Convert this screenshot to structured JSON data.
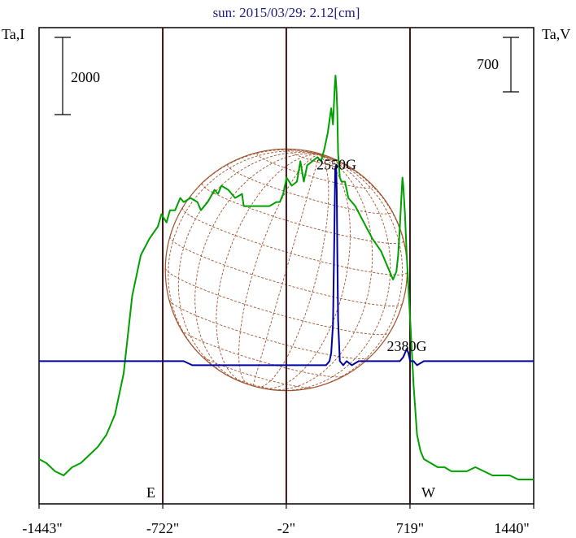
{
  "chart_data": {
    "type": "line",
    "title": "sun: 2015/03/29: 2.12[cm]",
    "left_axis_label": "Ta,I",
    "right_axis_label": "Ta,V",
    "left_scale_bar_label": "2000",
    "left_scale_bar_value": 2000,
    "right_scale_bar_label": "700",
    "right_scale_bar_value": 700,
    "x_tick_labels": [
      "-1443\"",
      "-722\"",
      "-2\"",
      "719\"",
      "1440\""
    ],
    "x_ticks": [
      -1443,
      -722,
      -2,
      719,
      1440
    ],
    "xlim": [
      -1443,
      1440
    ],
    "ylim_relative": [
      0,
      1
    ],
    "vertical_markers": [
      {
        "x": -722,
        "label": "E"
      },
      {
        "x": -2,
        "label": ""
      },
      {
        "x": 719,
        "label": "W"
      }
    ],
    "annotations": [
      {
        "text": "2550G",
        "x": 290,
        "y": 0.77
      },
      {
        "text": "2380G",
        "x": 700,
        "y": 0.325
      }
    ],
    "solar_disk": {
      "center_x": -2,
      "radius_arcsec": 705,
      "color": "#a0522d"
    },
    "series": [
      {
        "color": "#00a000",
        "x": [
          -1443,
          -1400,
          -1350,
          -1300,
          -1250,
          -1200,
          -1150,
          -1100,
          -1050,
          -1000,
          -950,
          -900,
          -850,
          -800,
          -750,
          -730,
          -700,
          -680,
          -650,
          -620,
          -600,
          -560,
          -520,
          -500,
          -460,
          -420,
          -400,
          -380,
          -340,
          -300,
          -260,
          -250,
          -200,
          -150,
          -100,
          -60,
          -40,
          -20,
          0,
          30,
          60,
          80,
          100,
          120,
          150,
          180,
          200,
          220,
          240,
          260,
          270,
          280,
          285,
          290,
          295,
          300,
          310,
          320,
          340,
          360,
          400,
          450,
          500,
          550,
          600,
          620,
          640,
          650,
          660,
          670,
          675,
          680,
          690,
          700,
          720,
          740,
          760,
          780,
          800,
          840,
          880,
          920,
          960,
          1000,
          1050,
          1100,
          1150,
          1200,
          1250,
          1300,
          1350,
          1400,
          1440
        ],
        "y": [
          0.06,
          0.05,
          0.03,
          0.02,
          0.04,
          0.05,
          0.07,
          0.09,
          0.12,
          0.17,
          0.27,
          0.46,
          0.56,
          0.6,
          0.63,
          0.66,
          0.64,
          0.67,
          0.67,
          0.7,
          0.69,
          0.7,
          0.69,
          0.67,
          0.69,
          0.72,
          0.71,
          0.73,
          0.72,
          0.7,
          0.71,
          0.68,
          0.68,
          0.68,
          0.68,
          0.69,
          0.69,
          0.71,
          0.75,
          0.73,
          0.74,
          0.79,
          0.74,
          0.78,
          0.79,
          0.8,
          0.79,
          0.82,
          0.86,
          0.92,
          0.88,
          0.97,
          1.0,
          0.97,
          0.92,
          0.81,
          0.75,
          0.74,
          0.74,
          0.7,
          0.68,
          0.64,
          0.6,
          0.57,
          0.52,
          0.5,
          0.52,
          0.56,
          0.63,
          0.71,
          0.75,
          0.73,
          0.66,
          0.56,
          0.4,
          0.24,
          0.12,
          0.08,
          0.06,
          0.05,
          0.04,
          0.04,
          0.03,
          0.03,
          0.03,
          0.04,
          0.03,
          0.02,
          0.02,
          0.02,
          0.01,
          0.01,
          0.01
        ]
      },
      {
        "color": "#0000a0",
        "x": [
          -1443,
          -1400,
          -1350,
          -1300,
          -1250,
          -1200,
          -1150,
          -1100,
          -1050,
          -1000,
          -950,
          -900,
          -850,
          -800,
          -750,
          -700,
          -650,
          -600,
          -550,
          -500,
          -450,
          -400,
          -350,
          -300,
          -250,
          -200,
          -150,
          -100,
          -50,
          0,
          50,
          100,
          150,
          200,
          230,
          250,
          260,
          270,
          278,
          283,
          288,
          292,
          296,
          300,
          310,
          330,
          350,
          380,
          420,
          460,
          500,
          550,
          600,
          640,
          660,
          680,
          690,
          700,
          710,
          720,
          740,
          760,
          800,
          850,
          900,
          950,
          1000,
          1050,
          1100,
          1150,
          1200,
          1250,
          1300,
          1350,
          1400,
          1440
        ],
        "y": [
          0.3,
          0.3,
          0.3,
          0.3,
          0.3,
          0.3,
          0.3,
          0.3,
          0.3,
          0.3,
          0.3,
          0.3,
          0.3,
          0.3,
          0.3,
          0.3,
          0.3,
          0.3,
          0.29,
          0.29,
          0.29,
          0.29,
          0.29,
          0.29,
          0.29,
          0.29,
          0.29,
          0.29,
          0.29,
          0.29,
          0.29,
          0.29,
          0.29,
          0.29,
          0.29,
          0.3,
          0.32,
          0.39,
          0.6,
          0.77,
          0.78,
          0.72,
          0.55,
          0.4,
          0.3,
          0.29,
          0.3,
          0.29,
          0.3,
          0.3,
          0.3,
          0.3,
          0.3,
          0.3,
          0.3,
          0.31,
          0.32,
          0.33,
          0.32,
          0.3,
          0.3,
          0.29,
          0.3,
          0.3,
          0.3,
          0.3,
          0.3,
          0.3,
          0.3,
          0.3,
          0.3,
          0.3,
          0.3,
          0.3,
          0.3,
          0.3
        ]
      }
    ]
  }
}
